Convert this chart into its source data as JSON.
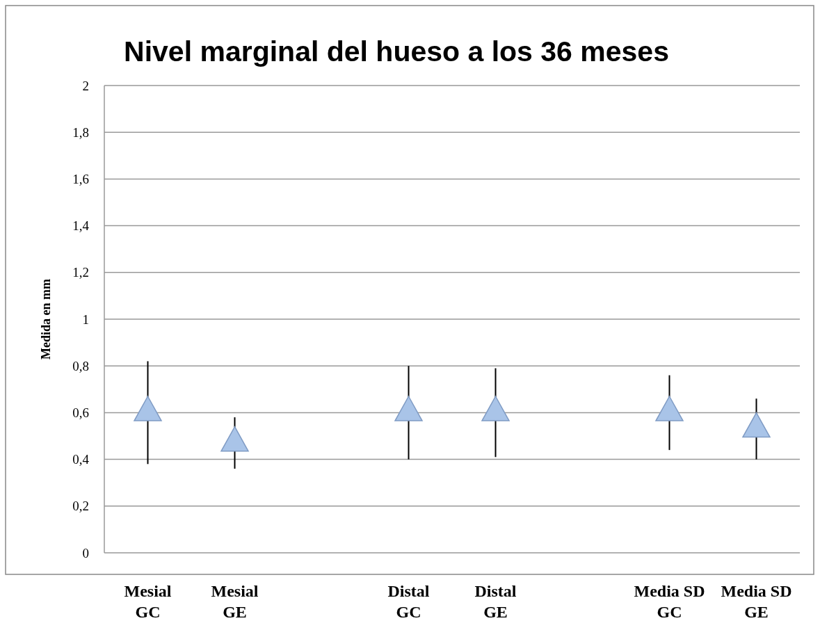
{
  "chart_data": {
    "type": "scatter",
    "title": "Nivel marginal del hueso a los 36 meses",
    "ylabel": "Medida en mm",
    "categories": [
      "Mesial GC",
      "Mesial GE",
      null,
      "Distal GC",
      "Distal GE",
      null,
      "Media SD GC",
      "Media SD GE"
    ],
    "values": [
      0.6,
      0.47,
      null,
      0.6,
      0.6,
      null,
      0.6,
      0.53
    ],
    "errors": [
      [
        0.38,
        0.82
      ],
      [
        0.36,
        0.58
      ],
      null,
      [
        0.4,
        0.8
      ],
      [
        0.41,
        0.79
      ],
      null,
      [
        0.44,
        0.76
      ],
      [
        0.4,
        0.66
      ]
    ],
    "color": "#a9c4e8",
    "marker": "triangle",
    "ylim": [
      0,
      2
    ],
    "yticks": [
      0,
      {
        "value": 0.2,
        "label": "0,2"
      },
      {
        "value": 0.4,
        "label": "0,4"
      },
      {
        "value": 0.6,
        "label": "0,6"
      },
      {
        "value": 0.8,
        "label": "0,8"
      },
      1,
      {
        "value": 1.2,
        "label": "1,2"
      },
      {
        "value": 1.4,
        "label": "1,4"
      },
      {
        "value": 1.6,
        "label": "1,6"
      },
      {
        "value": 1.8,
        "label": "1,8"
      },
      2
    ],
    "grid": "y"
  }
}
